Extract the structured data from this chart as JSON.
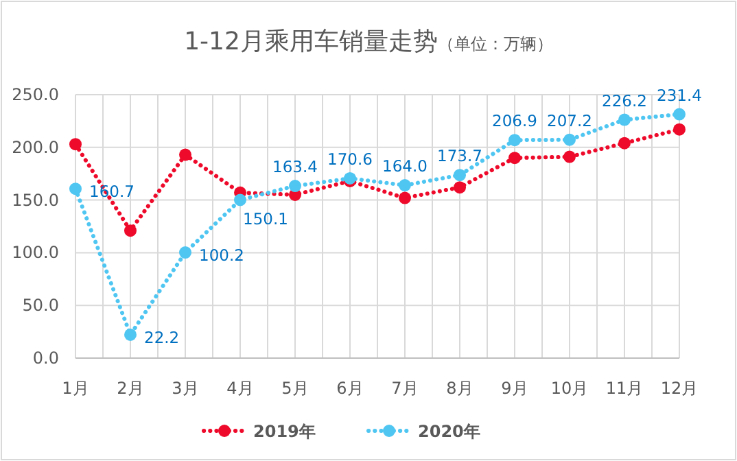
{
  "chart_data": {
    "type": "line",
    "title": "1-12月乘用车销量走势",
    "subtitle": "（单位：万辆）",
    "categories": [
      "1月",
      "2月",
      "3月",
      "4月",
      "5月",
      "6月",
      "7月",
      "8月",
      "9月",
      "10月",
      "11月",
      "12月"
    ],
    "series": [
      {
        "name": "2019年",
        "color": "#ee0a2a",
        "values": [
          203,
          121,
          193,
          157,
          155,
          168,
          152,
          162,
          190,
          191,
          204,
          217
        ]
      },
      {
        "name": "2020年",
        "color": "#4fc6f2",
        "values": [
          160.7,
          22.2,
          100.2,
          150.1,
          163.4,
          170.6,
          164.0,
          173.7,
          206.9,
          207.2,
          226.2,
          231.4
        ],
        "value_labels": [
          "160.7",
          "22.2",
          "100.2",
          "150.1",
          "163.4",
          "170.6",
          "164.0",
          "173.7",
          "206.9",
          "207.2",
          "226.2",
          "231.4"
        ]
      }
    ],
    "ylim": [
      0,
      250
    ],
    "yticks": [
      {
        "value": 0,
        "label": "0.0"
      },
      {
        "value": 50,
        "label": "50.0"
      },
      {
        "value": 100,
        "label": "100.0"
      },
      {
        "value": 150,
        "label": "150.0"
      },
      {
        "value": 200,
        "label": "200.0"
      },
      {
        "value": 250,
        "label": "250.0"
      }
    ],
    "grid": true,
    "legend": "bottom",
    "marker": "circle",
    "line_style": "dotted"
  }
}
